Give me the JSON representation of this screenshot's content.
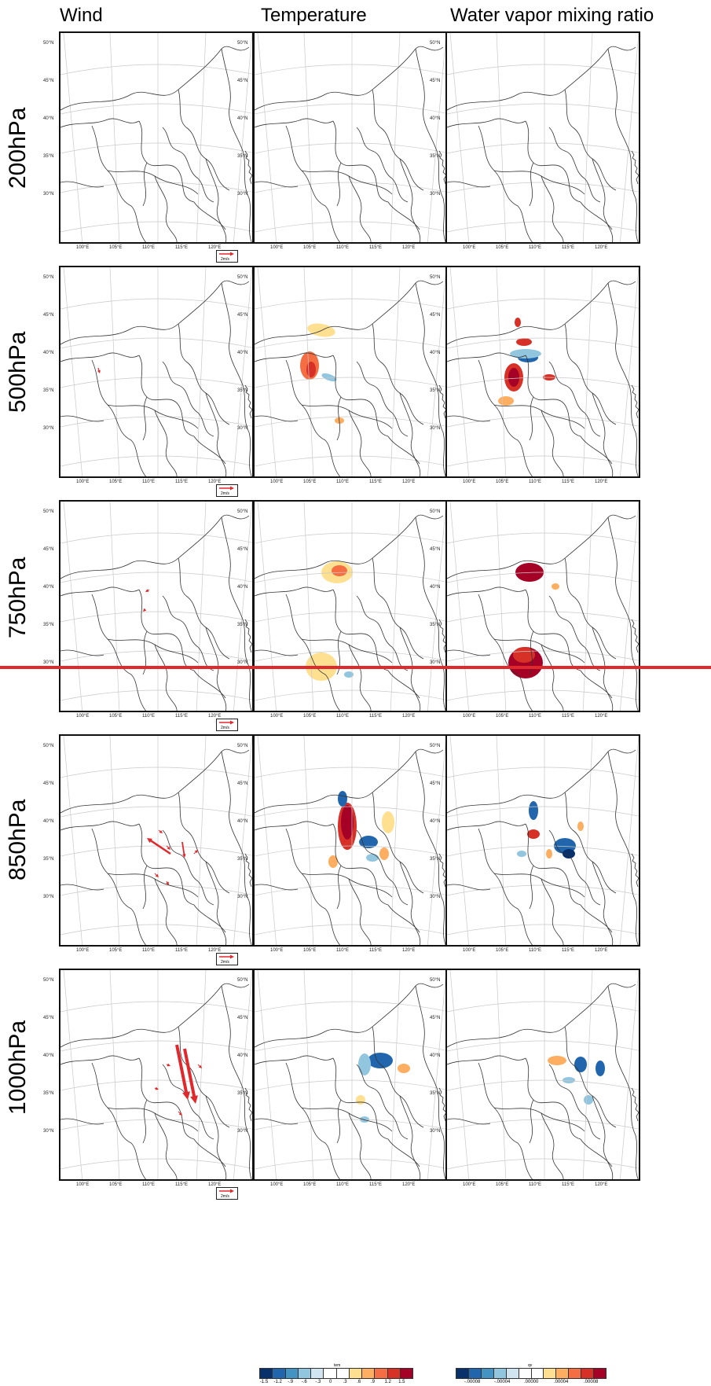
{
  "columns": [
    "Wind",
    "Temperature",
    "Water vapor mixing ratio"
  ],
  "rows": [
    "200hPa",
    "500hPa",
    "750hPa",
    "850hPa",
    "1000hPa"
  ],
  "lat_labels": [
    "50°N",
    "45°N",
    "40°N",
    "35°N",
    "30°N"
  ],
  "lon_labels": [
    "100°E",
    "105°E",
    "110°E",
    "115°E",
    "120°E"
  ],
  "wind_ref_label": "2m/s",
  "temp_colorbar": {
    "title": "tem",
    "labels": [
      "-1.5",
      "-1.2",
      "-.9",
      "-.6",
      "-.3",
      "0",
      ".3",
      ".6",
      ".9",
      "1.2",
      "1.5"
    ]
  },
  "qv_colorbar": {
    "title": "qv",
    "labels": [
      "-.00008",
      "-.00004",
      ".00000",
      ".00004",
      ".00008"
    ]
  },
  "colors": {
    "highlight_line": "#e0292d",
    "wind_arrow": "#e0292d",
    "scale": [
      "#08306b",
      "#2166ac",
      "#4393c3",
      "#92c5de",
      "#d1e5f0",
      "#ffffff",
      "#ffffff",
      "#fee090",
      "#fdae61",
      "#f46d43",
      "#d73027",
      "#a50026"
    ]
  }
}
